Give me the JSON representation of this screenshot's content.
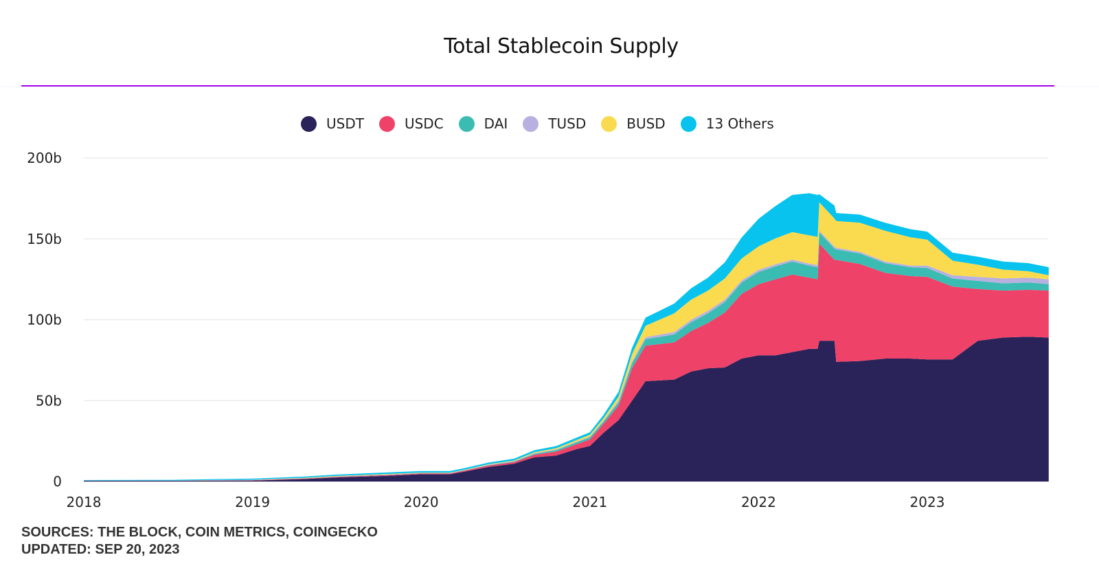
{
  "chart_data": {
    "type": "area",
    "stacked": true,
    "title": "Total Stablecoin Supply",
    "xlabel": "",
    "ylabel": "",
    "ylim": [
      0,
      200
    ],
    "y_unit": "b",
    "y_ticks": [
      "0",
      "50b",
      "100b",
      "150b",
      "200b"
    ],
    "y_tick_values": [
      0,
      50,
      100,
      150,
      200
    ],
    "x_ticks": [
      "2018",
      "2019",
      "2020",
      "2021",
      "2022",
      "2023"
    ],
    "x_tick_values": [
      2018,
      2019,
      2020,
      2021,
      2022,
      2023
    ],
    "xlim": [
      2018.0,
      2023.72
    ],
    "grid": true,
    "legend_position": "top-center",
    "x": [
      2018.0,
      2018.5,
      2019.0,
      2019.3,
      2019.5,
      2019.8,
      2020.0,
      2020.17,
      2020.25,
      2020.4,
      2020.55,
      2020.67,
      2020.8,
      2020.92,
      2021.0,
      2021.08,
      2021.17,
      2021.25,
      2021.33,
      2021.42,
      2021.5,
      2021.6,
      2021.7,
      2021.8,
      2021.9,
      2022.0,
      2022.1,
      2022.2,
      2022.3,
      2022.35,
      2022.36,
      2022.45,
      2022.46,
      2022.6,
      2022.75,
      2022.9,
      2023.0,
      2023.15,
      2023.3,
      2023.45,
      2023.6,
      2023.72
    ],
    "series": [
      {
        "name": "USDT",
        "color": "#2a2359",
        "values": [
          0.5,
          0.5,
          0.6,
          1.5,
          2.5,
          3.5,
          4.5,
          4.5,
          6,
          9,
          11,
          15,
          16,
          20,
          22,
          30,
          38,
          50,
          62,
          62.5,
          63,
          68,
          70,
          70.5,
          76,
          78,
          78,
          80,
          82,
          82,
          87,
          87,
          74,
          74.5,
          76,
          76,
          75.5,
          75.5,
          87,
          89,
          89.5,
          89
        ]
      },
      {
        "name": "USDC",
        "color": "#ef4268",
        "values": [
          0,
          0,
          0.2,
          0.3,
          0.4,
          0.5,
          0.5,
          0.5,
          0.6,
          0.9,
          1.0,
          1.5,
          2.5,
          3.0,
          4.0,
          5.5,
          9,
          20,
          22,
          22.5,
          23,
          25,
          28,
          34,
          40,
          44,
          47,
          48,
          44,
          43,
          60,
          50,
          63,
          60,
          53,
          51,
          51,
          45,
          32,
          29,
          29,
          29
        ]
      },
      {
        "name": "DAI",
        "color": "#3abcb2",
        "values": [
          0,
          0,
          0.1,
          0.1,
          0.1,
          0.2,
          0.1,
          0.1,
          0.1,
          0.2,
          0.3,
          0.6,
          0.9,
          1.2,
          1.3,
          1.5,
          2.0,
          3.0,
          4.0,
          4.5,
          5.0,
          5.5,
          6.0,
          6.5,
          7.0,
          7.5,
          8.0,
          8.0,
          7.5,
          7.5,
          7.0,
          7.0,
          6.5,
          6.5,
          6.0,
          5.5,
          5.5,
          5.0,
          5.0,
          4.5,
          4.5,
          4.0
        ]
      },
      {
        "name": "TUSD",
        "color": "#b7b0e0",
        "values": [
          0.1,
          0.1,
          0.2,
          0.2,
          0.2,
          0.2,
          0.2,
          0.2,
          0.2,
          0.3,
          0.3,
          0.4,
          0.4,
          0.4,
          0.4,
          0.5,
          1.0,
          1.2,
          1.3,
          1.4,
          1.5,
          1.5,
          1.5,
          1.5,
          1.4,
          1.4,
          1.3,
          1.2,
          1.2,
          1.2,
          1.1,
          1.1,
          1.0,
          1.0,
          1.0,
          1.0,
          1.5,
          2.0,
          2.5,
          3.0,
          3.0,
          3.0
        ]
      },
      {
        "name": "BUSD",
        "color": "#fadb4f",
        "values": [
          0,
          0,
          0.1,
          0.2,
          0.3,
          0.3,
          0.2,
          0.2,
          0.2,
          0.3,
          0.4,
          0.6,
          0.8,
          1.0,
          1.2,
          1.5,
          2.5,
          4.5,
          7.0,
          9.5,
          11.5,
          12.5,
          12.5,
          13,
          13.5,
          14.5,
          16,
          17,
          17.5,
          17.5,
          17.5,
          17.5,
          16.5,
          18,
          19,
          17.5,
          16,
          9,
          7.5,
          5.5,
          4,
          2.5
        ]
      },
      {
        "name": "13 Others",
        "color": "#07c3ee",
        "values": [
          0.3,
          0.4,
          0.6,
          0.7,
          0.8,
          0.9,
          1.0,
          1.0,
          1.0,
          1.0,
          1.1,
          1.2,
          1.3,
          1.5,
          1.6,
          2.0,
          3.0,
          4.0,
          5.0,
          5.5,
          6.0,
          7.0,
          8.0,
          10,
          13,
          17,
          20,
          23,
          26,
          26,
          5,
          8,
          5,
          5,
          5,
          5,
          5,
          5,
          5,
          5,
          5,
          5
        ]
      }
    ]
  },
  "footer": {
    "sources": "SOURCES: THE BLOCK, COIN METRICS, COINGECKO",
    "updated": "UPDATED: SEP 20, 2023"
  }
}
